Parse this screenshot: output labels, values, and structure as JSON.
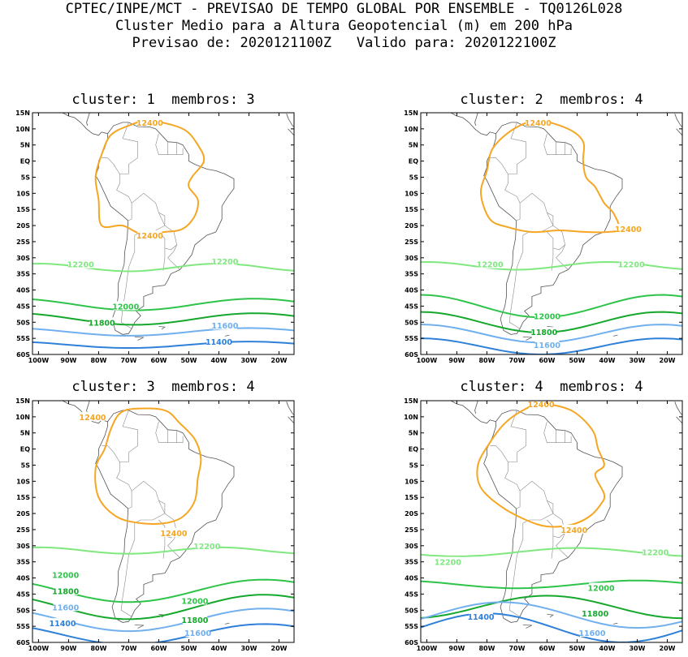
{
  "header": {
    "line1": "CPTEC/INPE/MCT - PREVISAO DE TEMPO GLOBAL POR ENSEMBLE - TQ0126L028",
    "line2": "Cluster Medio para a Altura Geopotencial (m) em 200 hPa",
    "line3": "Previsao de: 2020121100Z   Valido para: 2020122100Z"
  },
  "axes": {
    "lat_labels": [
      "15N",
      "10N",
      "5N",
      "EQ",
      "5S",
      "10S",
      "15S",
      "20S",
      "25S",
      "30S",
      "35S",
      "40S",
      "45S",
      "50S",
      "55S",
      "60S"
    ],
    "lon_labels": [
      "100W",
      "90W",
      "80W",
      "70W",
      "60W",
      "50W",
      "40W",
      "30W",
      "20W"
    ]
  },
  "contour_colors": {
    "12400": "#f5a623",
    "12200": "#7fe87f",
    "12000": "#2ec44a",
    "11800": "#16a82c",
    "11600": "#70b0ee",
    "11400": "#2f80d8"
  },
  "panels": [
    {
      "title": "cluster: 1  membros: 3",
      "labels": [
        {
          "text": "12400",
          "lon": -63,
          "lat": 12
        },
        {
          "text": "12400",
          "lon": -63,
          "lat": -23
        },
        {
          "text": "12200",
          "lon": -86,
          "lat": -32
        },
        {
          "text": "12200",
          "lon": -38,
          "lat": -31
        },
        {
          "text": "12000",
          "lon": -71,
          "lat": -45
        },
        {
          "text": "11800",
          "lon": -79,
          "lat": -50
        },
        {
          "text": "11600",
          "lon": -38,
          "lat": -51
        },
        {
          "text": "11400",
          "lon": -40,
          "lat": -56
        }
      ]
    },
    {
      "title": "cluster: 2  membros: 4",
      "labels": [
        {
          "text": "12400",
          "lon": -63,
          "lat": 12
        },
        {
          "text": "12400",
          "lon": -33,
          "lat": -21
        },
        {
          "text": "12200",
          "lon": -79,
          "lat": -32
        },
        {
          "text": "12200",
          "lon": -32,
          "lat": -32
        },
        {
          "text": "12000",
          "lon": -60,
          "lat": -48
        },
        {
          "text": "11800",
          "lon": -61,
          "lat": -53
        },
        {
          "text": "11600",
          "lon": -60,
          "lat": -57
        }
      ]
    },
    {
      "title": "cluster: 3  membros: 4",
      "labels": [
        {
          "text": "12400",
          "lon": -82,
          "lat": 10
        },
        {
          "text": "12400",
          "lon": -55,
          "lat": -26
        },
        {
          "text": "12200",
          "lon": -44,
          "lat": -30
        },
        {
          "text": "12000",
          "lon": -91,
          "lat": -39
        },
        {
          "text": "11800",
          "lon": -91,
          "lat": -44
        },
        {
          "text": "12000",
          "lon": -48,
          "lat": -47
        },
        {
          "text": "11600",
          "lon": -91,
          "lat": -49
        },
        {
          "text": "11400",
          "lon": -92,
          "lat": -54
        },
        {
          "text": "11800",
          "lon": -48,
          "lat": -53
        },
        {
          "text": "11600",
          "lon": -47,
          "lat": -57
        }
      ]
    },
    {
      "title": "cluster: 4  membros: 4",
      "labels": [
        {
          "text": "12400",
          "lon": -62,
          "lat": 14
        },
        {
          "text": "12400",
          "lon": -51,
          "lat": -25
        },
        {
          "text": "12200",
          "lon": -93,
          "lat": -35
        },
        {
          "text": "12200",
          "lon": -24,
          "lat": -32
        },
        {
          "text": "12000",
          "lon": -42,
          "lat": -43
        },
        {
          "text": "11800",
          "lon": -44,
          "lat": -51
        },
        {
          "text": "11400",
          "lon": -82,
          "lat": -52
        },
        {
          "text": "11600",
          "lon": -45,
          "lat": -57
        }
      ]
    }
  ]
}
